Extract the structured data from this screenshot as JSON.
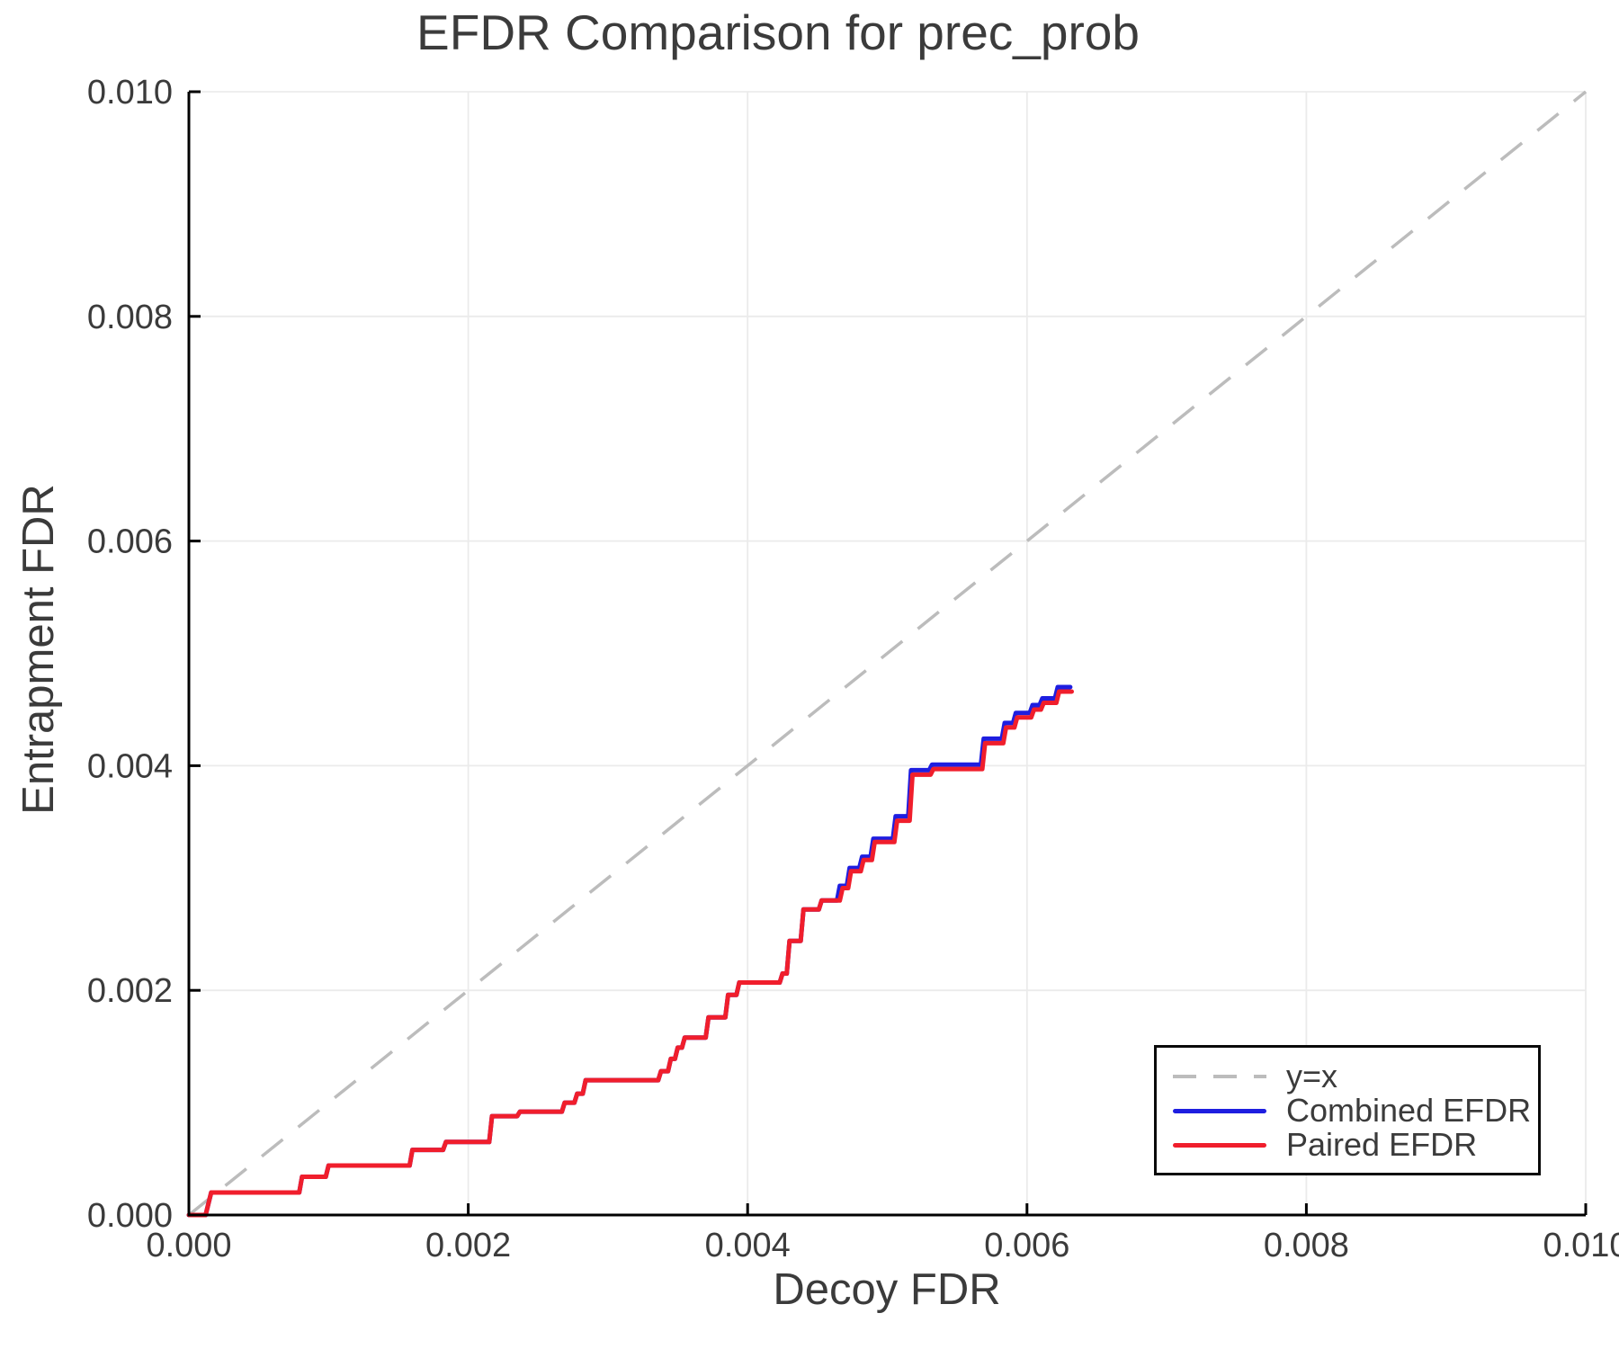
{
  "figure": {
    "background": "#ffffff",
    "text_color": "#3b3b3b",
    "grid_color": "#ebebeb",
    "axis_color": "#000000"
  },
  "chart_data": {
    "type": "line",
    "title": "EFDR Comparison for prec_prob",
    "xlabel": "Decoy FDR",
    "ylabel": "Entrapment FDR",
    "xlim": [
      0.0,
      0.01
    ],
    "ylim": [
      0.0,
      0.01
    ],
    "xticks": [
      0.0,
      0.002,
      0.004,
      0.006,
      0.008,
      0.01
    ],
    "xtick_labels": [
      "0.000",
      "0.002",
      "0.004",
      "0.006",
      "0.008",
      "0.010"
    ],
    "yticks": [
      0.0,
      0.002,
      0.004,
      0.006,
      0.008,
      0.01
    ],
    "ytick_labels": [
      "0.000",
      "0.002",
      "0.004",
      "0.006",
      "0.008",
      "0.010"
    ],
    "grid": true,
    "legend_position": "lower right",
    "series": [
      {
        "name": "y=x",
        "color": "#bcbcbc",
        "style": "dashed",
        "width": 3.5,
        "points": [
          [
            0.0,
            0.0
          ],
          [
            0.01,
            0.01
          ]
        ]
      },
      {
        "name": "Combined EFDR",
        "color": "#1e1ee0",
        "style": "solid",
        "width": 5,
        "points": [
          [
            0.0,
            0.0
          ],
          [
            0.00012,
            0.0
          ],
          [
            0.00016,
            0.0002
          ],
          [
            0.00079,
            0.0002
          ],
          [
            0.00081,
            0.00034
          ],
          [
            0.00098,
            0.00034
          ],
          [
            0.001,
            0.00044
          ],
          [
            0.00158,
            0.00044
          ],
          [
            0.0016,
            0.00058
          ],
          [
            0.00182,
            0.00058
          ],
          [
            0.00184,
            0.00065
          ],
          [
            0.00215,
            0.00065
          ],
          [
            0.00217,
            0.00088
          ],
          [
            0.00235,
            0.00088
          ],
          [
            0.00237,
            0.00092
          ],
          [
            0.00267,
            0.00092
          ],
          [
            0.00269,
            0.001
          ],
          [
            0.00276,
            0.001
          ],
          [
            0.00278,
            0.00108
          ],
          [
            0.00282,
            0.00108
          ],
          [
            0.00284,
            0.0012
          ],
          [
            0.00336,
            0.0012
          ],
          [
            0.00338,
            0.00128
          ],
          [
            0.00343,
            0.00128
          ],
          [
            0.00345,
            0.00139
          ],
          [
            0.00348,
            0.00139
          ],
          [
            0.0035,
            0.00149
          ],
          [
            0.00353,
            0.00149
          ],
          [
            0.00355,
            0.00158
          ],
          [
            0.0037,
            0.00158
          ],
          [
            0.00372,
            0.00176
          ],
          [
            0.00384,
            0.00176
          ],
          [
            0.00386,
            0.00196
          ],
          [
            0.00392,
            0.00196
          ],
          [
            0.00394,
            0.00207
          ],
          [
            0.00423,
            0.00207
          ],
          [
            0.00425,
            0.00215
          ],
          [
            0.00428,
            0.00215
          ],
          [
            0.0043,
            0.00244
          ],
          [
            0.00438,
            0.00244
          ],
          [
            0.0044,
            0.00272
          ],
          [
            0.00451,
            0.00272
          ],
          [
            0.00453,
            0.0028
          ],
          [
            0.00464,
            0.0028
          ],
          [
            0.00466,
            0.00293
          ],
          [
            0.00471,
            0.00293
          ],
          [
            0.00473,
            0.00309
          ],
          [
            0.0048,
            0.00309
          ],
          [
            0.00482,
            0.00319
          ],
          [
            0.00488,
            0.00319
          ],
          [
            0.0049,
            0.00335
          ],
          [
            0.00504,
            0.00335
          ],
          [
            0.00506,
            0.00355
          ],
          [
            0.00515,
            0.00355
          ],
          [
            0.00517,
            0.00396
          ],
          [
            0.0053,
            0.00396
          ],
          [
            0.00532,
            0.00401
          ],
          [
            0.00567,
            0.00401
          ],
          [
            0.00569,
            0.00424
          ],
          [
            0.00582,
            0.00424
          ],
          [
            0.00584,
            0.00438
          ],
          [
            0.0059,
            0.00438
          ],
          [
            0.00592,
            0.00447
          ],
          [
            0.00602,
            0.00447
          ],
          [
            0.00604,
            0.00454
          ],
          [
            0.00609,
            0.00454
          ],
          [
            0.00611,
            0.0046
          ],
          [
            0.0062,
            0.0046
          ],
          [
            0.00622,
            0.0047
          ],
          [
            0.00631,
            0.0047
          ]
        ]
      },
      {
        "name": "Paired EFDR",
        "color": "#f01e2c",
        "style": "solid",
        "width": 5,
        "points": [
          [
            0.0,
            0.0
          ],
          [
            0.00012,
            0.0
          ],
          [
            0.00016,
            0.0002
          ],
          [
            0.00079,
            0.0002
          ],
          [
            0.00081,
            0.00034
          ],
          [
            0.00098,
            0.00034
          ],
          [
            0.001,
            0.00044
          ],
          [
            0.00158,
            0.00044
          ],
          [
            0.0016,
            0.00058
          ],
          [
            0.00182,
            0.00058
          ],
          [
            0.00184,
            0.00065
          ],
          [
            0.00215,
            0.00065
          ],
          [
            0.00217,
            0.00088
          ],
          [
            0.00235,
            0.00088
          ],
          [
            0.00237,
            0.00092
          ],
          [
            0.00267,
            0.00092
          ],
          [
            0.00269,
            0.001
          ],
          [
            0.00276,
            0.001
          ],
          [
            0.00278,
            0.00108
          ],
          [
            0.00282,
            0.00108
          ],
          [
            0.00284,
            0.0012
          ],
          [
            0.00336,
            0.0012
          ],
          [
            0.00338,
            0.00128
          ],
          [
            0.00343,
            0.00128
          ],
          [
            0.00345,
            0.00139
          ],
          [
            0.00348,
            0.00139
          ],
          [
            0.0035,
            0.00149
          ],
          [
            0.00353,
            0.00149
          ],
          [
            0.00355,
            0.00158
          ],
          [
            0.0037,
            0.00158
          ],
          [
            0.00372,
            0.00176
          ],
          [
            0.00384,
            0.00176
          ],
          [
            0.00386,
            0.00196
          ],
          [
            0.00392,
            0.00196
          ],
          [
            0.00394,
            0.00207
          ],
          [
            0.00423,
            0.00207
          ],
          [
            0.00425,
            0.00215
          ],
          [
            0.00428,
            0.00215
          ],
          [
            0.0043,
            0.00244
          ],
          [
            0.00438,
            0.00244
          ],
          [
            0.0044,
            0.00272
          ],
          [
            0.00451,
            0.00272
          ],
          [
            0.00453,
            0.0028
          ],
          [
            0.00466,
            0.0028
          ],
          [
            0.00468,
            0.00291
          ],
          [
            0.00472,
            0.00291
          ],
          [
            0.00474,
            0.00306
          ],
          [
            0.00481,
            0.00306
          ],
          [
            0.00483,
            0.00316
          ],
          [
            0.00489,
            0.00316
          ],
          [
            0.00491,
            0.00332
          ],
          [
            0.00505,
            0.00332
          ],
          [
            0.00507,
            0.00351
          ],
          [
            0.00516,
            0.00351
          ],
          [
            0.00518,
            0.00392
          ],
          [
            0.00531,
            0.00392
          ],
          [
            0.00533,
            0.00397
          ],
          [
            0.00568,
            0.00397
          ],
          [
            0.0057,
            0.0042
          ],
          [
            0.00583,
            0.0042
          ],
          [
            0.00585,
            0.00434
          ],
          [
            0.00591,
            0.00434
          ],
          [
            0.00593,
            0.00443
          ],
          [
            0.00603,
            0.00443
          ],
          [
            0.00605,
            0.0045
          ],
          [
            0.0061,
            0.0045
          ],
          [
            0.00612,
            0.00456
          ],
          [
            0.00621,
            0.00456
          ],
          [
            0.00623,
            0.00466
          ],
          [
            0.00632,
            0.00466
          ]
        ]
      }
    ]
  }
}
